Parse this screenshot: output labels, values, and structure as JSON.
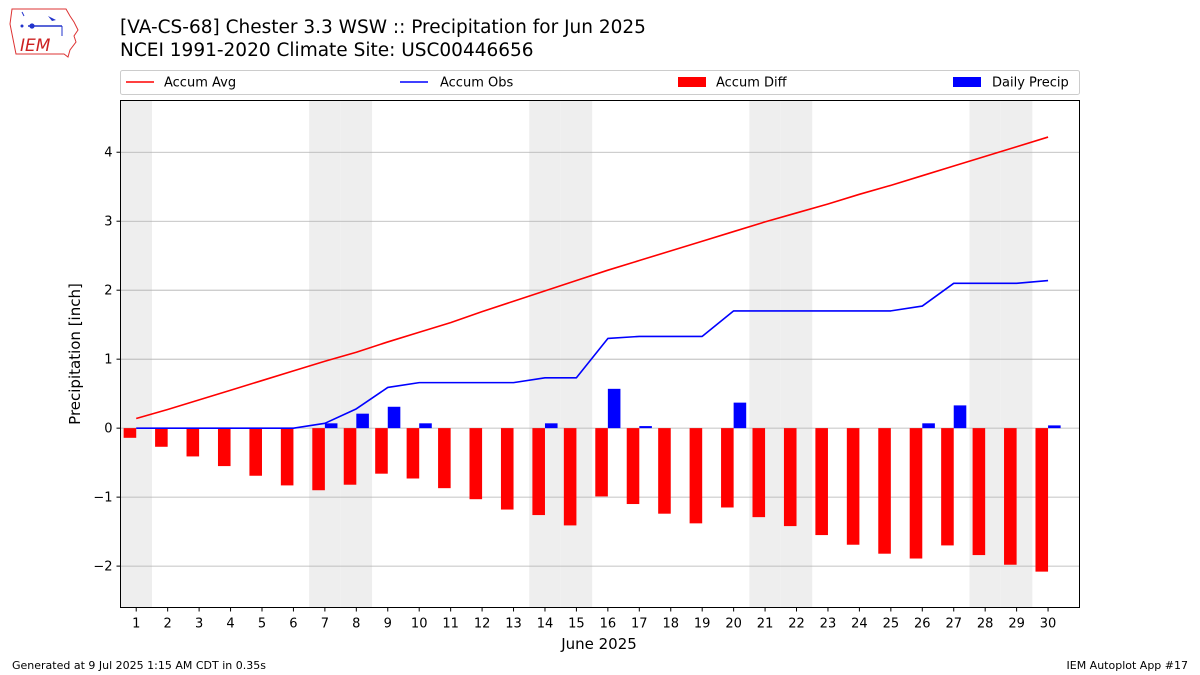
{
  "header": {
    "title": "[VA-CS-68] Chester 3.3 WSW :: Precipitation for Jun 2025",
    "subtitle": "NCEI 1991-2020 Climate Site: USC00446656"
  },
  "logo": {
    "text": "IEM",
    "icon": "iowa-state-outline-logo"
  },
  "footer": {
    "left": "Generated at 9 Jul 2025 1:15 AM CDT in 0.35s",
    "right": "IEM Autoplot App #17"
  },
  "colors": {
    "accum_avg": "#ff0000",
    "accum_obs": "#0000ff",
    "accum_diff": "#ff0000",
    "daily_precip": "#0000ff",
    "weekend_shade": "#eeeeee",
    "grid": "#b0b0b0"
  },
  "chart_data": {
    "type": "bar",
    "xlabel": "June 2025",
    "ylabel": "Precipitation [inch]",
    "xlim": [
      0.5,
      31.0
    ],
    "ylim": [
      -2.6,
      4.75
    ],
    "yticks": [
      -2,
      -1,
      0,
      1,
      2,
      3,
      4
    ],
    "ytick_labels": [
      "−2",
      "−1",
      "0",
      "1",
      "2",
      "3",
      "4"
    ],
    "grid": "horizontal",
    "legend_placement": "top, above plot",
    "legend": [
      "Accum Avg",
      "Accum Obs",
      "Accum Diff",
      "Daily Precip"
    ],
    "weekend_days": [
      1,
      7,
      8,
      14,
      15,
      21,
      22,
      28,
      29
    ],
    "days": [
      1,
      2,
      3,
      4,
      5,
      6,
      7,
      8,
      9,
      10,
      11,
      12,
      13,
      14,
      15,
      16,
      17,
      18,
      19,
      20,
      21,
      22,
      23,
      24,
      25,
      26,
      27,
      28,
      29,
      30
    ],
    "series": [
      {
        "name": "Accum Avg",
        "kind": "line",
        "values": [
          0.14,
          0.27,
          0.41,
          0.55,
          0.69,
          0.83,
          0.97,
          1.1,
          1.25,
          1.39,
          1.53,
          1.69,
          1.84,
          1.99,
          2.14,
          2.29,
          2.43,
          2.57,
          2.71,
          2.85,
          2.99,
          3.12,
          3.25,
          3.39,
          3.52,
          3.66,
          3.8,
          3.94,
          4.08,
          4.22
        ]
      },
      {
        "name": "Accum Obs",
        "kind": "line",
        "values": [
          0.0,
          0.0,
          0.0,
          0.0,
          0.0,
          0.0,
          0.07,
          0.28,
          0.59,
          0.66,
          0.66,
          0.66,
          0.66,
          0.73,
          0.73,
          1.3,
          1.33,
          1.33,
          1.33,
          1.7,
          1.7,
          1.7,
          1.7,
          1.7,
          1.7,
          1.77,
          2.1,
          2.1,
          2.1,
          2.14
        ]
      },
      {
        "name": "Accum Diff",
        "kind": "bar",
        "values": [
          -0.14,
          -0.27,
          -0.41,
          -0.55,
          -0.69,
          -0.83,
          -0.9,
          -0.82,
          -0.66,
          -0.73,
          -0.87,
          -1.03,
          -1.18,
          -1.26,
          -1.41,
          -0.99,
          -1.1,
          -1.24,
          -1.38,
          -1.15,
          -1.29,
          -1.42,
          -1.55,
          -1.69,
          -1.82,
          -1.89,
          -1.7,
          -1.84,
          -1.98,
          -2.08
        ]
      },
      {
        "name": "Daily Precip",
        "kind": "bar",
        "values": [
          0.0,
          0.0,
          0.0,
          0.0,
          0.0,
          0.0,
          0.07,
          0.21,
          0.31,
          0.07,
          0.0,
          0.0,
          0.0,
          0.07,
          0.0,
          0.57,
          0.03,
          0.0,
          0.0,
          0.37,
          0.0,
          0.0,
          0.0,
          0.0,
          0.0,
          0.07,
          0.33,
          0.0,
          0.0,
          0.04
        ]
      }
    ]
  }
}
